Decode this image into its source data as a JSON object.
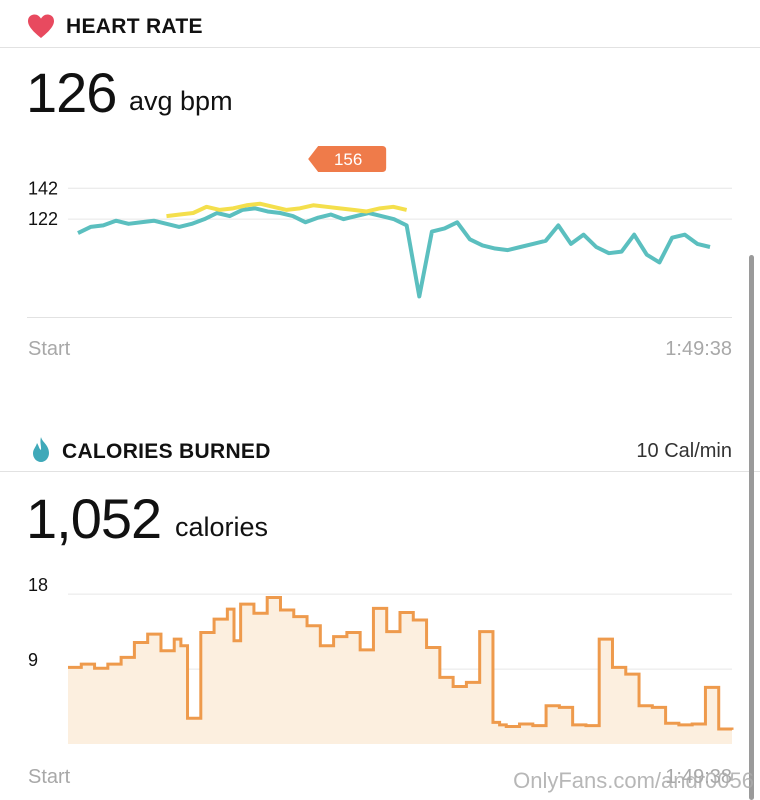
{
  "heart_rate": {
    "title": "HEART RATE",
    "value": "126",
    "unit": "avg bpm",
    "peak_label": "156",
    "colors": {
      "line": "#5bbfbf",
      "highlight": "#f4df4c",
      "callout": "#ef7b4a",
      "icon": "#e84a5f"
    }
  },
  "calories": {
    "title": "CALORIES BURNED",
    "rate": "10 Cal/min",
    "value": "1,052",
    "unit": "calories",
    "colors": {
      "line": "#ee9a4c",
      "fill": "#fcefdf",
      "icon": "#3fa9b9"
    }
  },
  "watermark": "OnlyFans.com/andr0056",
  "chart_data": [
    {
      "type": "line",
      "name": "heart-rate",
      "x_start_label": "Start",
      "x_end_label": "1:49:38",
      "y_ticks": [
        142,
        122
      ],
      "ylim": [
        60,
        170
      ],
      "x_range": [
        0,
        100
      ],
      "x": [
        0,
        2,
        4,
        6,
        8,
        10,
        12,
        14,
        16,
        18,
        20,
        22,
        24,
        26,
        28,
        30,
        32,
        34,
        36,
        38,
        40,
        42,
        44,
        46,
        48,
        50,
        52,
        54,
        56,
        58,
        60,
        62,
        64,
        66,
        68,
        70,
        72,
        74,
        76,
        78,
        80,
        82,
        84,
        86,
        88,
        90,
        92,
        94,
        96,
        98,
        100
      ],
      "values": [
        113,
        117,
        118,
        121,
        119,
        120,
        121,
        119,
        117,
        119,
        122,
        126,
        124,
        128,
        129,
        127,
        126,
        124,
        120,
        123,
        125,
        122,
        124,
        126,
        124,
        122,
        118,
        72,
        114,
        116,
        120,
        109,
        105,
        103,
        102,
        104,
        106,
        108,
        118,
        106,
        112,
        104,
        100,
        101,
        112,
        99,
        94,
        110,
        112,
        106,
        104
      ],
      "highlight_x_range": [
        14,
        52
      ],
      "highlight_values": [
        124,
        125,
        126,
        130,
        128,
        129,
        131,
        132,
        130,
        128,
        129,
        131,
        130,
        129,
        128,
        127,
        129,
        130,
        128
      ],
      "peak": 156,
      "peak_x": 38
    },
    {
      "type": "area",
      "name": "calories-per-minute",
      "x_start_label": "Start",
      "x_end_label": "1:49:38",
      "y_ticks": [
        18,
        9
      ],
      "ylim": [
        0,
        18.5
      ],
      "x_range": [
        0,
        100
      ],
      "x": [
        0,
        2,
        4,
        6,
        8,
        10,
        12,
        14,
        16,
        17,
        18,
        20,
        22,
        24,
        25,
        26,
        28,
        30,
        32,
        34,
        36,
        38,
        40,
        42,
        44,
        46,
        48,
        50,
        52,
        54,
        56,
        58,
        60,
        62,
        64,
        65,
        66,
        68,
        70,
        72,
        74,
        76,
        78,
        80,
        82,
        84,
        86,
        88,
        90,
        92,
        94,
        96,
        98,
        100
      ],
      "values": [
        9.2,
        9.6,
        9.1,
        9.6,
        10.4,
        12.2,
        13.2,
        11.2,
        12.6,
        11.8,
        3.1,
        13.4,
        15.0,
        16.2,
        12.4,
        16.8,
        15.7,
        17.6,
        16.1,
        15.3,
        14.2,
        11.8,
        12.9,
        13.4,
        11.3,
        16.3,
        13.5,
        15.8,
        14.9,
        11.6,
        8.0,
        6.9,
        7.4,
        13.5,
        2.6,
        2.3,
        2.1,
        2.4,
        2.2,
        4.6,
        4.4,
        2.3,
        2.2,
        12.6,
        9.2,
        8.4,
        4.6,
        4.4,
        2.5,
        2.3,
        2.4,
        6.8,
        1.8,
        1.7
      ]
    }
  ]
}
